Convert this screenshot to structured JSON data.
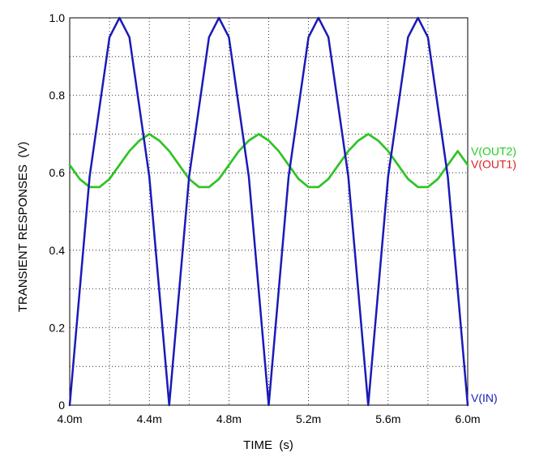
{
  "chart_data": {
    "type": "line",
    "title": "",
    "xlabel": "TIME  (s)",
    "ylabel": "TRANSIENT RESPONSES  (V)",
    "xlim": [
      0.004,
      0.006
    ],
    "ylim": [
      0,
      1.0
    ],
    "grid": true,
    "x_ticks": [
      {
        "value": 0.004,
        "label": "4.0m"
      },
      {
        "value": 0.0044,
        "label": "4.4m"
      },
      {
        "value": 0.0048,
        "label": "4.8m"
      },
      {
        "value": 0.0052,
        "label": "5.2m"
      },
      {
        "value": 0.0056,
        "label": "5.6m"
      },
      {
        "value": 0.006,
        "label": "6.0m"
      }
    ],
    "y_ticks": [
      {
        "value": 0,
        "label": "0"
      },
      {
        "value": 0.2,
        "label": "0.2"
      },
      {
        "value": 0.4,
        "label": "0.4"
      },
      {
        "value": 0.6,
        "label": "0.6"
      },
      {
        "value": 0.8,
        "label": "0.8"
      },
      {
        "value": 1.0,
        "label": "1.0"
      }
    ],
    "series": [
      {
        "name": "V(IN)",
        "color": "#1a1ab8",
        "x": [
          0.004,
          0.0041,
          0.0042,
          0.00425,
          0.0043,
          0.0044,
          0.0045,
          0.0046,
          0.0047,
          0.00475,
          0.0048,
          0.0049,
          0.005,
          0.0051,
          0.0052,
          0.00525,
          0.0053,
          0.0054,
          0.0055,
          0.0056,
          0.0057,
          0.00575,
          0.0058,
          0.0059,
          0.006
        ],
        "y": [
          0.0,
          0.59,
          0.95,
          1.0,
          0.95,
          0.59,
          0.0,
          0.59,
          0.95,
          1.0,
          0.95,
          0.59,
          0.0,
          0.59,
          0.95,
          1.0,
          0.95,
          0.59,
          0.0,
          0.59,
          0.95,
          1.0,
          0.95,
          0.59,
          0.0
        ]
      },
      {
        "name": "V(OUT2)",
        "color": "#22cc22",
        "x": [
          0.004,
          0.00405,
          0.0041,
          0.00415,
          0.0042,
          0.00425,
          0.0043,
          0.00435,
          0.0044,
          0.00445,
          0.0045,
          0.00455,
          0.0046,
          0.00465,
          0.0047,
          0.00475,
          0.0048,
          0.00485,
          0.0049,
          0.00495,
          0.005,
          0.00505,
          0.0051,
          0.00515,
          0.0052,
          0.00525,
          0.0053,
          0.00535,
          0.0054,
          0.00545,
          0.0055,
          0.00555,
          0.0056,
          0.00565,
          0.0057,
          0.00575,
          0.0058,
          0.00585,
          0.0059,
          0.00595,
          0.006
        ],
        "y": [
          0.62,
          0.584,
          0.563,
          0.563,
          0.584,
          0.62,
          0.656,
          0.683,
          0.7,
          0.683,
          0.656,
          0.62,
          0.584,
          0.563,
          0.563,
          0.584,
          0.62,
          0.656,
          0.683,
          0.7,
          0.683,
          0.656,
          0.62,
          0.584,
          0.563,
          0.563,
          0.584,
          0.62,
          0.656,
          0.683,
          0.7,
          0.683,
          0.656,
          0.62,
          0.584,
          0.563,
          0.563,
          0.584,
          0.62,
          0.656,
          0.62
        ]
      },
      {
        "name": "V(OUT1)",
        "color": "#e02020",
        "x": [
          0.004,
          0.00405,
          0.0041,
          0.00415,
          0.0042,
          0.00425,
          0.0043,
          0.00435,
          0.0044,
          0.00445,
          0.0045,
          0.00455,
          0.0046,
          0.00465,
          0.0047,
          0.00475,
          0.0048,
          0.00485,
          0.0049,
          0.00495,
          0.005,
          0.00505,
          0.0051,
          0.00515,
          0.0052,
          0.00525,
          0.0053,
          0.00535,
          0.0054,
          0.00545,
          0.0055,
          0.00555,
          0.0056,
          0.00565,
          0.0057,
          0.00575,
          0.0058,
          0.00585,
          0.0059,
          0.00595,
          0.006
        ],
        "y": [
          0.62,
          0.584,
          0.563,
          0.563,
          0.584,
          0.62,
          0.656,
          0.683,
          0.7,
          0.683,
          0.656,
          0.62,
          0.584,
          0.563,
          0.563,
          0.584,
          0.62,
          0.656,
          0.683,
          0.7,
          0.683,
          0.656,
          0.62,
          0.584,
          0.563,
          0.563,
          0.584,
          0.62,
          0.656,
          0.683,
          0.7,
          0.683,
          0.656,
          0.62,
          0.584,
          0.563,
          0.563,
          0.584,
          0.62,
          0.656,
          0.62
        ]
      }
    ]
  }
}
